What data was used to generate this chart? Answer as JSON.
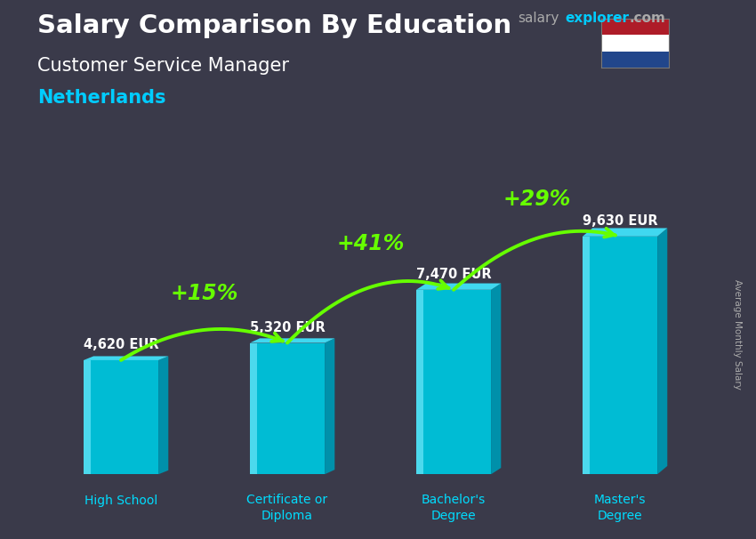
{
  "title": "Salary Comparison By Education",
  "subtitle": "Customer Service Manager",
  "country": "Netherlands",
  "ylabel": "Average Monthly Salary",
  "categories": [
    "High School",
    "Certificate or\nDiploma",
    "Bachelor's\nDegree",
    "Master's\nDegree"
  ],
  "values": [
    4620,
    5320,
    7470,
    9630
  ],
  "value_labels": [
    "4,620 EUR",
    "5,320 EUR",
    "7,470 EUR",
    "9,630 EUR"
  ],
  "pct_changes": [
    "+15%",
    "+41%",
    "+29%"
  ],
  "bar_face_color": "#00bcd4",
  "bar_highlight_color": "#80eeff",
  "bar_side_color": "#0090aa",
  "bar_top_color": "#40d8f0",
  "bg_color": "#3a3a4a",
  "title_color": "#ffffff",
  "subtitle_color": "#ffffff",
  "country_color": "#00ccff",
  "value_color": "#ffffff",
  "pct_color": "#66ff00",
  "arrow_color": "#66ff00",
  "cat_label_color": "#00ddff",
  "ylim": [
    0,
    12000
  ],
  "site_salary_color": "#aaaaaa",
  "site_explorer_color": "#00ccff",
  "site_com_color": "#aaaaaa",
  "flag_red": "#AE1C28",
  "flag_white": "#ffffff",
  "flag_blue": "#21468B"
}
